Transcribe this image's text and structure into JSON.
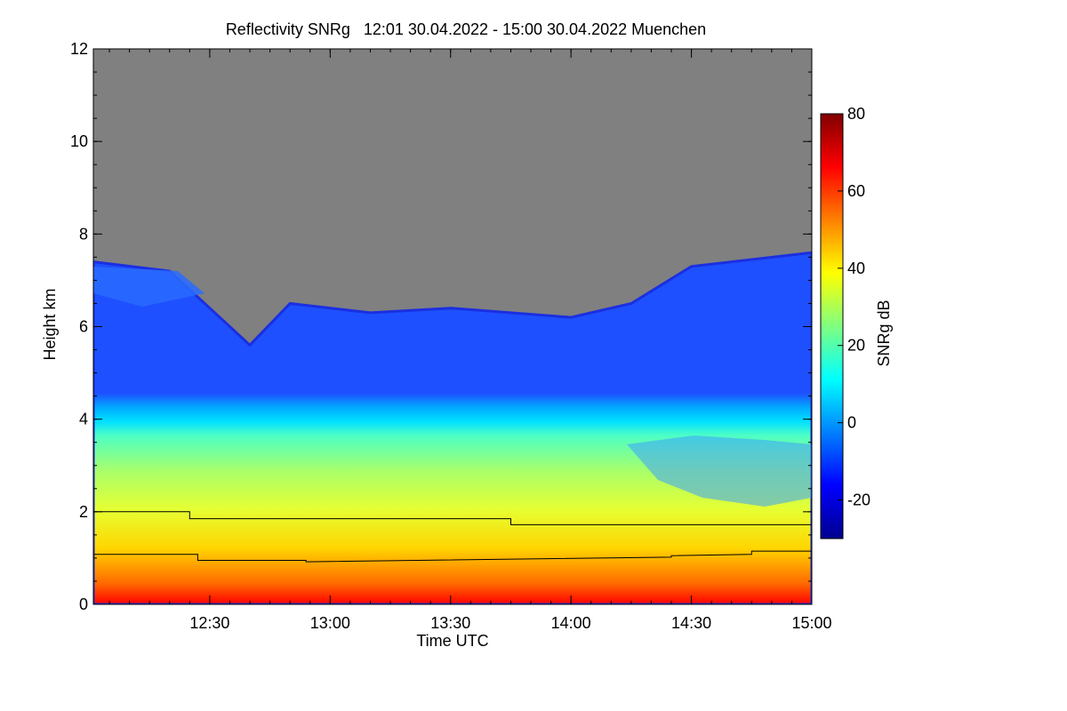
{
  "chart_data": {
    "type": "heatmap",
    "title": "Reflectivity SNRg   12:01 30.04.2022 - 15:00 30.04.2022 Muenchen",
    "xlabel": "Time UTC",
    "ylabel": "Height km",
    "colorbar_label": "SNRg dB",
    "xlim": [
      "12:01",
      "15:00"
    ],
    "x_ticks": [
      "12:30",
      "13:00",
      "13:30",
      "14:00",
      "14:30",
      "15:00"
    ],
    "ylim": [
      0,
      12
    ],
    "y_ticks": [
      "0",
      "2",
      "4",
      "6",
      "8",
      "10",
      "12"
    ],
    "colorbar_range": [
      -30,
      80
    ],
    "colorbar_ticks": [
      "-20",
      "0",
      "20",
      "40",
      "60",
      "80"
    ],
    "colors": {
      "no_signal": "#808080",
      "colormap": [
        "#00008f",
        "#0000ff",
        "#0080ff",
        "#00ffff",
        "#80ff80",
        "#ffff00",
        "#ff8000",
        "#ff0000",
        "#800000"
      ]
    },
    "cloud_top_km": [
      {
        "time": "12:01",
        "height": 7.4
      },
      {
        "time": "12:20",
        "height": 7.2
      },
      {
        "time": "12:30",
        "height": 6.4
      },
      {
        "time": "12:40",
        "height": 5.6
      },
      {
        "time": "12:50",
        "height": 6.5
      },
      {
        "time": "13:10",
        "height": 6.3
      },
      {
        "time": "13:30",
        "height": 6.4
      },
      {
        "time": "14:00",
        "height": 6.2
      },
      {
        "time": "14:15",
        "height": 6.5
      },
      {
        "time": "14:30",
        "height": 7.3
      },
      {
        "time": "15:00",
        "height": 7.6
      }
    ],
    "series": [
      {
        "type": "line",
        "x": [
          "12:01",
          "12:25",
          "12:25",
          "13:45",
          "13:45",
          "15:00"
        ],
        "y": [
          2.0,
          2.0,
          1.85,
          1.85,
          1.72,
          1.72
        ]
      },
      {
        "type": "line",
        "x": [
          "12:01",
          "12:27",
          "12:27",
          "12:54",
          "12:54",
          "14:25",
          "14:25",
          "14:45",
          "14:45",
          "15:00"
        ],
        "y": [
          1.08,
          1.08,
          0.95,
          0.95,
          0.92,
          1.02,
          1.05,
          1.08,
          1.15,
          1.15
        ]
      }
    ]
  }
}
